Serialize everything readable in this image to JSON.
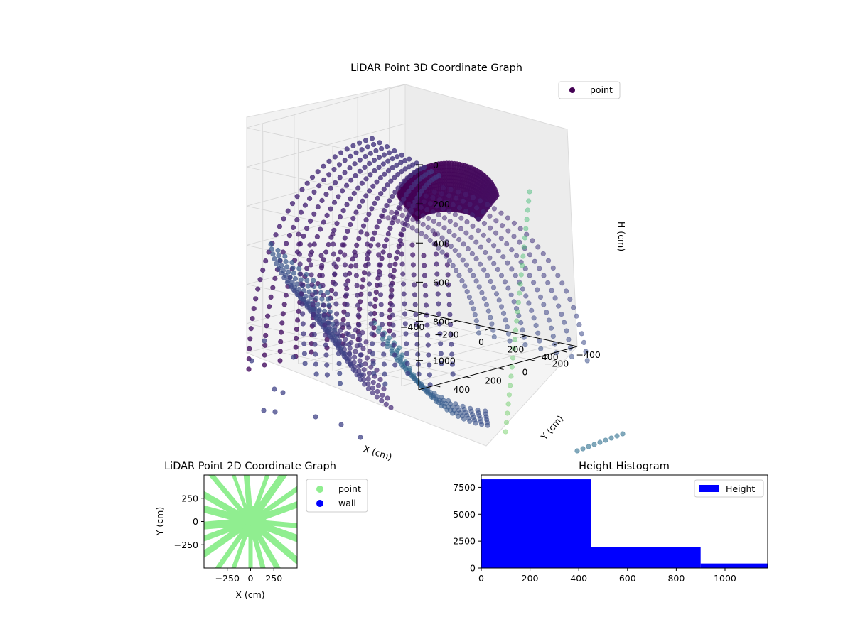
{
  "chart_data": [
    {
      "type": "scatter3d",
      "title": "LiDAR Point 3D Coordinate Graph",
      "xlabel": "X (cm)",
      "ylabel": "Y (cm)",
      "zlabel": "H (cm)",
      "x_ticks": [
        -400,
        -200,
        0,
        200,
        400
      ],
      "y_ticks": [
        -400,
        -200,
        0,
        200,
        400
      ],
      "z_ticks": [
        0,
        200,
        400,
        600,
        800,
        1000
      ],
      "xlim": [
        -500,
        500
      ],
      "ylim": [
        -500,
        500
      ],
      "zlim": [
        0,
        1150
      ],
      "z_inverted": true,
      "grid": true,
      "legend": {
        "position": "top-right",
        "entries": [
          {
            "label": "point",
            "color": "#440154"
          }
        ]
      },
      "colormap": "viridis",
      "series": [
        {
          "name": "point"
        }
      ]
    },
    {
      "type": "scatter",
      "title": "LiDAR Point 2D Coordinate Graph",
      "xlabel": "X (cm)",
      "ylabel": "Y (cm)",
      "x_ticks": [
        -250,
        0,
        250
      ],
      "y_ticks": [
        -250,
        0,
        250
      ],
      "xlim": [
        -500,
        500
      ],
      "ylim": [
        -500,
        500
      ],
      "legend": {
        "position": "outside-right",
        "entries": [
          {
            "label": "point",
            "color": "#90ee90"
          },
          {
            "label": "wall",
            "color": "#0000ff"
          }
        ]
      },
      "series": [
        {
          "name": "point",
          "color": "#90ee90"
        },
        {
          "name": "wall",
          "color": "#0000ff"
        }
      ]
    },
    {
      "type": "bar",
      "title": "Height Histogram",
      "x_ticks": [
        0,
        200,
        400,
        600,
        800,
        1000
      ],
      "y_ticks": [
        0,
        2500,
        5000,
        7500
      ],
      "xlim": [
        0,
        1175
      ],
      "ylim": [
        0,
        8650
      ],
      "bins": [
        {
          "x0": 0,
          "x1": 450,
          "value": 8250
        },
        {
          "x0": 450,
          "x1": 900,
          "value": 1950
        },
        {
          "x0": 900,
          "x1": 1175,
          "value": 420
        }
      ],
      "color": "#0000ff",
      "legend": {
        "position": "top-right",
        "entries": [
          {
            "label": "Height",
            "color": "#0000ff"
          }
        ]
      },
      "series": [
        {
          "name": "Height"
        }
      ]
    }
  ]
}
